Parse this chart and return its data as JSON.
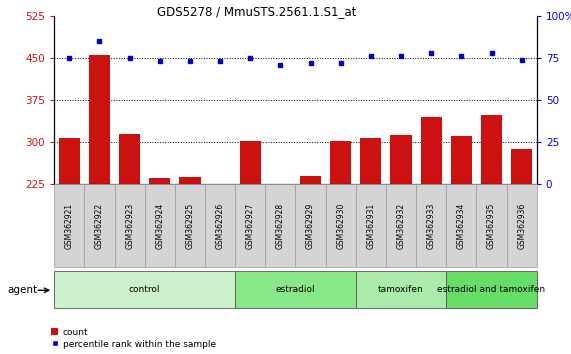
{
  "title": "GDS5278 / MmuSTS.2561.1.S1_at",
  "samples": [
    "GSM362921",
    "GSM362922",
    "GSM362923",
    "GSM362924",
    "GSM362925",
    "GSM362926",
    "GSM362927",
    "GSM362928",
    "GSM362929",
    "GSM362930",
    "GSM362931",
    "GSM362932",
    "GSM362933",
    "GSM362934",
    "GSM362935",
    "GSM362936"
  ],
  "counts": [
    308,
    455,
    315,
    235,
    238,
    222,
    302,
    222,
    240,
    302,
    308,
    312,
    345,
    310,
    348,
    288
  ],
  "percentiles": [
    75,
    85,
    75,
    73,
    73,
    73,
    75,
    71,
    72,
    72,
    76,
    76,
    78,
    76,
    78,
    74
  ],
  "groups": [
    {
      "label": "control",
      "start": 0,
      "end": 5,
      "color": "#ccf0cc"
    },
    {
      "label": "estradiol",
      "start": 6,
      "end": 9,
      "color": "#88e888"
    },
    {
      "label": "tamoxifen",
      "start": 10,
      "end": 12,
      "color": "#aaeaaa"
    },
    {
      "label": "estradiol and tamoxifen",
      "start": 13,
      "end": 15,
      "color": "#66dd66"
    }
  ],
  "bar_color": "#cc1111",
  "dot_color": "#0000cc",
  "left_ylim": [
    225,
    525
  ],
  "right_ylim": [
    0,
    100
  ],
  "left_yticks": [
    225,
    300,
    375,
    450,
    525
  ],
  "right_yticks": [
    0,
    25,
    50,
    75,
    100
  ],
  "right_yticklabels": [
    "0",
    "25",
    "50",
    "75",
    "100%"
  ],
  "hlines": [
    300,
    375,
    450
  ],
  "bar_color_tick_bg": "#d8d8d8",
  "background_color": "#ffffff",
  "bar_width": 0.7,
  "figsize": [
    5.71,
    3.54
  ],
  "dpi": 100
}
